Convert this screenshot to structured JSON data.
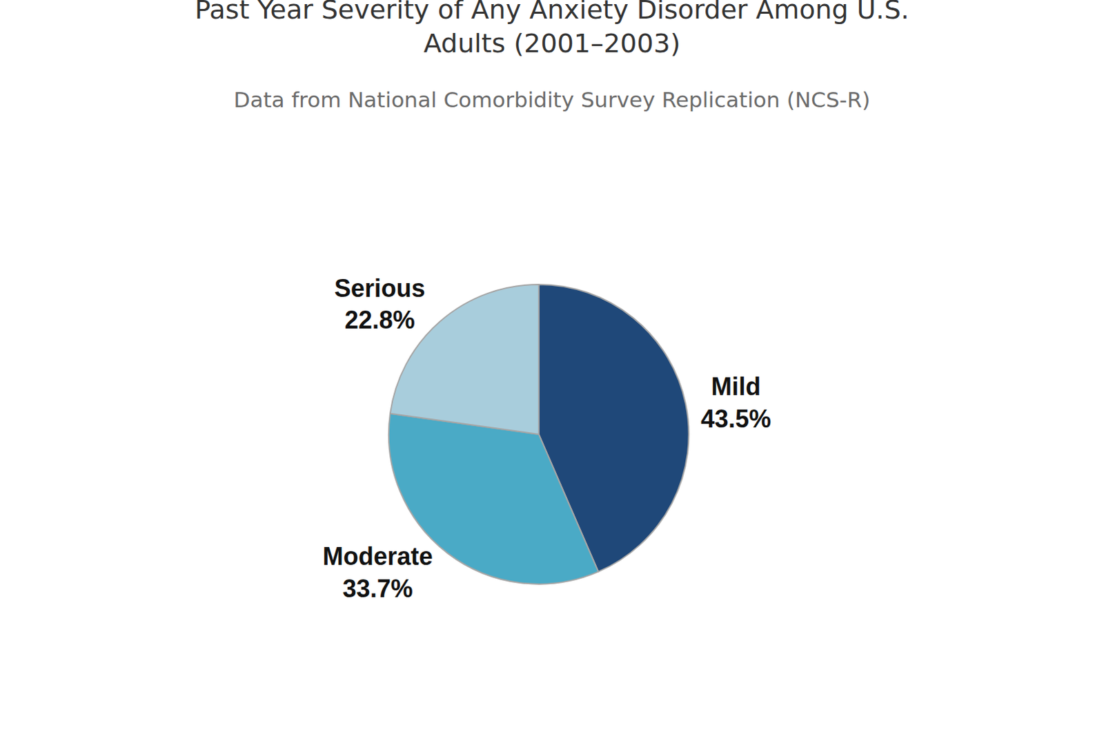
{
  "chart_data": {
    "type": "pie",
    "title": "Past Year Severity of Any Anxiety Disorder Among U.S. Adults (2001–2003)",
    "subtitle": "Data from National Comorbidity Survey Replication (NCS-R)",
    "categories": [
      "Mild",
      "Moderate",
      "Serious"
    ],
    "values": [
      43.5,
      33.7,
      22.8
    ],
    "value_labels": [
      "43.5%",
      "33.7%",
      "22.8%"
    ],
    "colors": [
      "#1f4879",
      "#4aaac6",
      "#a8cddc"
    ],
    "data_labels": true
  }
}
